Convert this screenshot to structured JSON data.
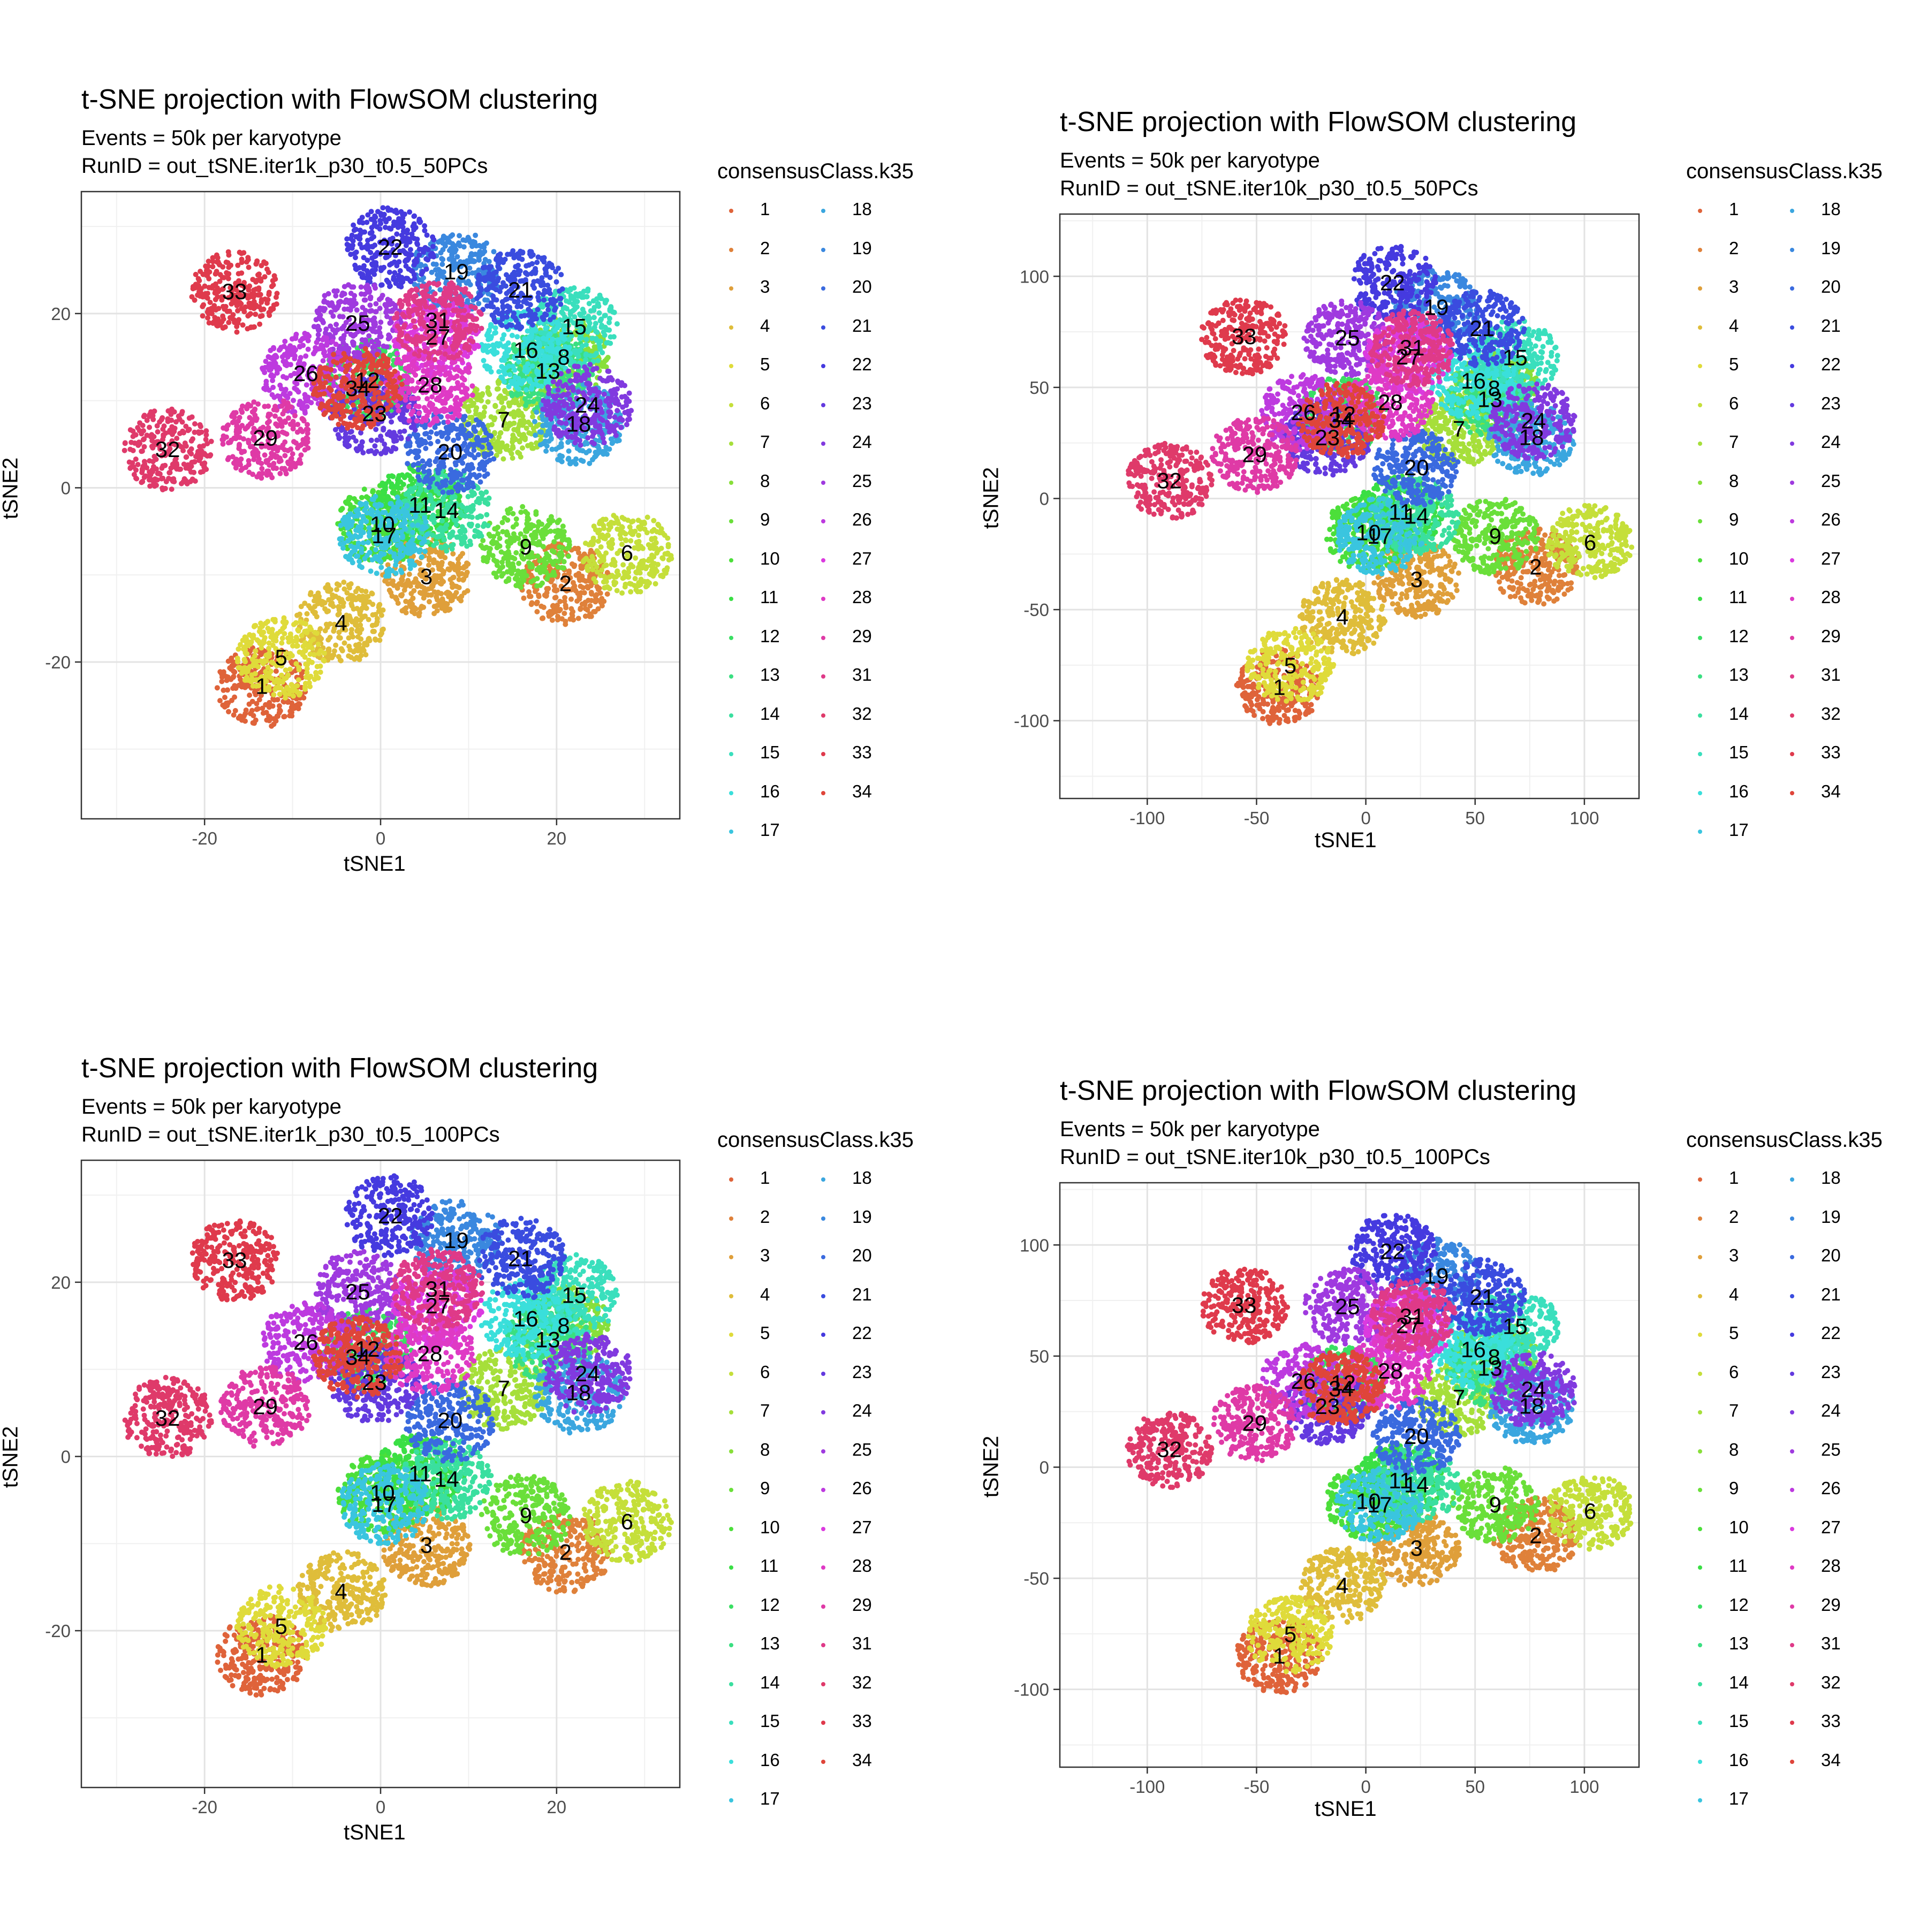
{
  "figure": {
    "panels": [
      {
        "title": "t-SNE projection with FlowSOM clustering",
        "subtitle_lines": [
          "Events = 50k per karyotype",
          "RunID = out_tSNE.iter1k_p30_t0.5_50PCs"
        ],
        "xlabel": "tSNE1",
        "ylabel": "tSNE2",
        "legend_title": "consensusClass.k35"
      },
      {
        "title": "t-SNE projection with FlowSOM clustering",
        "subtitle_lines": [
          "Events = 50k per karyotype",
          "RunID = out_tSNE.iter10k_p30_t0.5_50PCs"
        ],
        "xlabel": "tSNE1",
        "ylabel": "tSNE2",
        "legend_title": "consensusClass.k35"
      },
      {
        "title": "t-SNE projection with FlowSOM clustering",
        "subtitle_lines": [
          "Events = 50k per karyotype",
          "RunID = out_tSNE.iter1k_p30_t0.5_100PCs"
        ],
        "xlabel": "tSNE1",
        "ylabel": "tSNE2",
        "legend_title": "consensusClass.k35"
      },
      {
        "title": "t-SNE projection with FlowSOM clustering",
        "subtitle_lines": [
          "Events = 50k per karyotype",
          "RunID = out_tSNE.iter10k_p30_t0.5_100PCs"
        ],
        "xlabel": "tSNE1",
        "ylabel": "tSNE2",
        "legend_title": "consensusClass.k35"
      }
    ]
  },
  "chart_data": [
    {
      "type": "scatter",
      "title": "t-SNE projection with FlowSOM clustering",
      "subtitle": "Events = 50k per karyotype\nRunID = out_tSNE.iter1k_p30_t0.5_50PCs",
      "xlabel": "tSNE1",
      "ylabel": "tSNE2",
      "xlim": [
        -34,
        34
      ],
      "ylim": [
        -38,
        34
      ],
      "xticks": [
        -20,
        0,
        20
      ],
      "yticks": [
        -20,
        0,
        20
      ],
      "grid": true,
      "legend": {
        "title": "consensusClass.k35",
        "position": "right",
        "entries": [
          "1",
          "2",
          "3",
          "4",
          "5",
          "6",
          "7",
          "8",
          "9",
          "10",
          "11",
          "12",
          "13",
          "14",
          "15",
          "16",
          "17",
          "18",
          "19",
          "20",
          "21",
          "22",
          "23",
          "24",
          "25",
          "26",
          "27",
          "28",
          "29",
          "31",
          "32",
          "33",
          "34"
        ]
      },
      "cluster_labels": [
        {
          "label": "1",
          "x": -13.5,
          "y": -22.8
        },
        {
          "label": "2",
          "x": 21,
          "y": -11
        },
        {
          "label": "3",
          "x": 5.2,
          "y": -10.2
        },
        {
          "label": "4",
          "x": -4.5,
          "y": -15.5
        },
        {
          "label": "5",
          "x": -11.3,
          "y": -19.5
        },
        {
          "label": "6",
          "x": 28,
          "y": -7.5
        },
        {
          "label": "7",
          "x": 14,
          "y": 7.8
        },
        {
          "label": "8",
          "x": 20.8,
          "y": 15
        },
        {
          "label": "9",
          "x": 16.5,
          "y": -6.8
        },
        {
          "label": "10",
          "x": 0.2,
          "y": -4.2
        },
        {
          "label": "11",
          "x": 4.5,
          "y": -2
        },
        {
          "label": "12",
          "x": -1.5,
          "y": 12.3
        },
        {
          "label": "13",
          "x": 19,
          "y": 13.4
        },
        {
          "label": "14",
          "x": 7.5,
          "y": -2.6
        },
        {
          "label": "15",
          "x": 22,
          "y": 18.5
        },
        {
          "label": "16",
          "x": 16.5,
          "y": 15.8
        },
        {
          "label": "17",
          "x": 0.4,
          "y": -5.5
        },
        {
          "label": "18",
          "x": 22.5,
          "y": 7.3
        },
        {
          "label": "19",
          "x": 8.6,
          "y": 24.8
        },
        {
          "label": "20",
          "x": 7.9,
          "y": 4.1
        },
        {
          "label": "21",
          "x": 15.9,
          "y": 22.7
        },
        {
          "label": "22",
          "x": 1.1,
          "y": 27.6
        },
        {
          "label": "23",
          "x": -0.7,
          "y": 8.5
        },
        {
          "label": "24",
          "x": 23.5,
          "y": 9.5
        },
        {
          "label": "25",
          "x": -2.6,
          "y": 18.9
        },
        {
          "label": "26",
          "x": -8.5,
          "y": 13.1
        },
        {
          "label": "27",
          "x": 6.5,
          "y": 17.3
        },
        {
          "label": "28",
          "x": 5.6,
          "y": 11.8
        },
        {
          "label": "29",
          "x": -13.1,
          "y": 5.7
        },
        {
          "label": "31",
          "x": 6.5,
          "y": 19.2
        },
        {
          "label": "32",
          "x": -24.2,
          "y": 4.4
        },
        {
          "label": "33",
          "x": -16.6,
          "y": 22.5
        },
        {
          "label": "34",
          "x": -2.6,
          "y": 11.4
        }
      ]
    },
    {
      "type": "scatter",
      "title": "t-SNE projection with FlowSOM clustering",
      "subtitle": "Events = 50k per karyotype\nRunID = out_tSNE.iter10k_p30_t0.5_50PCs",
      "xlabel": "tSNE1",
      "ylabel": "tSNE2",
      "xlim": [
        -140,
        125
      ],
      "ylim": [
        -135,
        128
      ],
      "xticks": [
        -100,
        -50,
        0,
        50,
        100
      ],
      "yticks": [
        -100,
        -50,
        0,
        50,
        100
      ],
      "grid": true,
      "legend": {
        "title": "consensusClass.k35",
        "position": "right",
        "entries": [
          "1",
          "2",
          "3",
          "4",
          "5",
          "6",
          "7",
          "8",
          "9",
          "10",
          "11",
          "12",
          "13",
          "14",
          "15",
          "16",
          "17",
          "18",
          "19",
          "20",
          "21",
          "22",
          "23",
          "24",
          "25",
          "26",
          "27",
          "28",
          "29",
          "31",
          "32",
          "33",
          "34"
        ]
      },
      "cluster_labels": [
        {
          "label": "1",
          "x": -39.6,
          "y": -85
        },
        {
          "label": "2",
          "x": 77.7,
          "y": -30.8
        },
        {
          "label": "3",
          "x": 23.2,
          "y": -36.5
        },
        {
          "label": "4",
          "x": -10.8,
          "y": -53.3
        },
        {
          "label": "5",
          "x": -34.6,
          "y": -75.3
        },
        {
          "label": "6",
          "x": 102.6,
          "y": -19.9
        },
        {
          "label": "7",
          "x": 42.6,
          "y": 31.3
        },
        {
          "label": "8",
          "x": 58.7,
          "y": 49.5
        },
        {
          "label": "9",
          "x": 59.2,
          "y": -17
        },
        {
          "label": "10",
          "x": 1.2,
          "y": -15.4
        },
        {
          "label": "11",
          "x": 15.8,
          "y": -6.1
        },
        {
          "label": "12",
          "x": -10.3,
          "y": 37.8
        },
        {
          "label": "13",
          "x": 56.8,
          "y": 44.6
        },
        {
          "label": "14",
          "x": 23.2,
          "y": -8
        },
        {
          "label": "15",
          "x": 68.3,
          "y": 63.3
        },
        {
          "label": "16",
          "x": 49.2,
          "y": 52.9
        },
        {
          "label": "17",
          "x": 6.3,
          "y": -17
        },
        {
          "label": "18",
          "x": 75.8,
          "y": 27.4
        },
        {
          "label": "19",
          "x": 32.2,
          "y": 86
        },
        {
          "label": "20",
          "x": 23.2,
          "y": 13.9
        },
        {
          "label": "21",
          "x": 53.2,
          "y": 76.5
        },
        {
          "label": "22",
          "x": 12.2,
          "y": 97.1
        },
        {
          "label": "23",
          "x": -17.6,
          "y": 27.3
        },
        {
          "label": "24",
          "x": 76.7,
          "y": 34.9
        },
        {
          "label": "25",
          "x": -8.4,
          "y": 72.3
        },
        {
          "label": "26",
          "x": -28.6,
          "y": 38.6
        },
        {
          "label": "27",
          "x": 19.5,
          "y": 63.7
        },
        {
          "label": "28",
          "x": 11.2,
          "y": 43.2
        },
        {
          "label": "29",
          "x": -50.9,
          "y": 19.7
        },
        {
          "label": "31",
          "x": 21.2,
          "y": 67.8
        },
        {
          "label": "32",
          "x": -89.9,
          "y": 7.9
        },
        {
          "label": "33",
          "x": -55.7,
          "y": 72.8
        },
        {
          "label": "34",
          "x": -11.3,
          "y": 35.3
        }
      ]
    },
    {
      "type": "scatter",
      "title": "t-SNE projection with FlowSOM clustering",
      "subtitle": "Events = 50k per karyotype\nRunID = out_tSNE.iter1k_p30_t0.5_100PCs",
      "xlabel": "tSNE1",
      "ylabel": "tSNE2",
      "xlim": [
        -34,
        34
      ],
      "ylim": [
        -38,
        34
      ],
      "xticks": [
        -20,
        0,
        20
      ],
      "yticks": [
        -20,
        0,
        20
      ],
      "grid": true,
      "legend": {
        "title": "consensusClass.k35",
        "position": "right",
        "entries": [
          "1",
          "2",
          "3",
          "4",
          "5",
          "6",
          "7",
          "8",
          "9",
          "10",
          "11",
          "12",
          "13",
          "14",
          "15",
          "16",
          "17",
          "18",
          "19",
          "20",
          "21",
          "22",
          "23",
          "24",
          "25",
          "26",
          "27",
          "28",
          "29",
          "31",
          "32",
          "33",
          "34"
        ]
      },
      "cluster_labels": [
        {
          "label": "1",
          "x": -13.5,
          "y": -22.8
        },
        {
          "label": "2",
          "x": 21,
          "y": -11
        },
        {
          "label": "3",
          "x": 5.2,
          "y": -10.2
        },
        {
          "label": "4",
          "x": -4.5,
          "y": -15.5
        },
        {
          "label": "5",
          "x": -11.3,
          "y": -19.5
        },
        {
          "label": "6",
          "x": 28,
          "y": -7.5
        },
        {
          "label": "7",
          "x": 14,
          "y": 7.8
        },
        {
          "label": "8",
          "x": 20.8,
          "y": 15
        },
        {
          "label": "9",
          "x": 16.5,
          "y": -6.8
        },
        {
          "label": "10",
          "x": 0.2,
          "y": -4.2
        },
        {
          "label": "11",
          "x": 4.5,
          "y": -2
        },
        {
          "label": "12",
          "x": -1.5,
          "y": 12.3
        },
        {
          "label": "13",
          "x": 19,
          "y": 13.4
        },
        {
          "label": "14",
          "x": 7.5,
          "y": -2.6
        },
        {
          "label": "15",
          "x": 22,
          "y": 18.5
        },
        {
          "label": "16",
          "x": 16.5,
          "y": 15.8
        },
        {
          "label": "17",
          "x": 0.4,
          "y": -5.5
        },
        {
          "label": "18",
          "x": 22.5,
          "y": 7.3
        },
        {
          "label": "19",
          "x": 8.6,
          "y": 24.8
        },
        {
          "label": "20",
          "x": 7.9,
          "y": 4.1
        },
        {
          "label": "21",
          "x": 15.9,
          "y": 22.7
        },
        {
          "label": "22",
          "x": 1.1,
          "y": 27.6
        },
        {
          "label": "23",
          "x": -0.7,
          "y": 8.5
        },
        {
          "label": "24",
          "x": 23.5,
          "y": 9.5
        },
        {
          "label": "25",
          "x": -2.6,
          "y": 18.9
        },
        {
          "label": "26",
          "x": -8.5,
          "y": 13.1
        },
        {
          "label": "27",
          "x": 6.5,
          "y": 17.3
        },
        {
          "label": "28",
          "x": 5.6,
          "y": 11.8
        },
        {
          "label": "29",
          "x": -13.1,
          "y": 5.7
        },
        {
          "label": "31",
          "x": 6.5,
          "y": 19.2
        },
        {
          "label": "32",
          "x": -24.2,
          "y": 4.4
        },
        {
          "label": "33",
          "x": -16.6,
          "y": 22.5
        },
        {
          "label": "34",
          "x": -2.6,
          "y": 11.4
        }
      ]
    },
    {
      "type": "scatter",
      "title": "t-SNE projection with FlowSOM clustering",
      "subtitle": "Events = 50k per karyotype\nRunID = out_tSNE.iter10k_p30_t0.5_100PCs",
      "xlabel": "tSNE1",
      "ylabel": "tSNE2",
      "xlim": [
        -140,
        125
      ],
      "ylim": [
        -135,
        128
      ],
      "xticks": [
        -100,
        -50,
        0,
        50,
        100
      ],
      "yticks": [
        -100,
        -50,
        0,
        50,
        100
      ],
      "grid": true,
      "legend": {
        "title": "consensusClass.k35",
        "position": "right",
        "entries": [
          "1",
          "2",
          "3",
          "4",
          "5",
          "6",
          "7",
          "8",
          "9",
          "10",
          "11",
          "12",
          "13",
          "14",
          "15",
          "16",
          "17",
          "18",
          "19",
          "20",
          "21",
          "22",
          "23",
          "24",
          "25",
          "26",
          "27",
          "28",
          "29",
          "31",
          "32",
          "33",
          "34"
        ]
      },
      "cluster_labels": [
        {
          "label": "1",
          "x": -39.6,
          "y": -85
        },
        {
          "label": "2",
          "x": 77.7,
          "y": -30.8
        },
        {
          "label": "3",
          "x": 23.2,
          "y": -36.5
        },
        {
          "label": "4",
          "x": -10.8,
          "y": -53.3
        },
        {
          "label": "5",
          "x": -34.6,
          "y": -75.3
        },
        {
          "label": "6",
          "x": 102.6,
          "y": -19.9
        },
        {
          "label": "7",
          "x": 42.6,
          "y": 31.3
        },
        {
          "label": "8",
          "x": 58.7,
          "y": 49.5
        },
        {
          "label": "9",
          "x": 59.2,
          "y": -17
        },
        {
          "label": "10",
          "x": 1.2,
          "y": -15.4
        },
        {
          "label": "11",
          "x": 15.8,
          "y": -6.1
        },
        {
          "label": "12",
          "x": -10.3,
          "y": 37.8
        },
        {
          "label": "13",
          "x": 56.8,
          "y": 44.6
        },
        {
          "label": "14",
          "x": 23.2,
          "y": -8
        },
        {
          "label": "15",
          "x": 68.3,
          "y": 63.3
        },
        {
          "label": "16",
          "x": 49.2,
          "y": 52.9
        },
        {
          "label": "17",
          "x": 6.3,
          "y": -17
        },
        {
          "label": "18",
          "x": 75.8,
          "y": 27.4
        },
        {
          "label": "19",
          "x": 32.2,
          "y": 86
        },
        {
          "label": "20",
          "x": 23.2,
          "y": 13.9
        },
        {
          "label": "21",
          "x": 53.2,
          "y": 76.5
        },
        {
          "label": "22",
          "x": 12.2,
          "y": 97.1
        },
        {
          "label": "23",
          "x": -17.6,
          "y": 27.3
        },
        {
          "label": "24",
          "x": 76.7,
          "y": 34.9
        },
        {
          "label": "25",
          "x": -8.4,
          "y": 72.3
        },
        {
          "label": "26",
          "x": -28.6,
          "y": 38.6
        },
        {
          "label": "27",
          "x": 19.5,
          "y": 63.7
        },
        {
          "label": "28",
          "x": 11.2,
          "y": 43.2
        },
        {
          "label": "29",
          "x": -50.9,
          "y": 19.7
        },
        {
          "label": "31",
          "x": 21.2,
          "y": 67.8
        },
        {
          "label": "32",
          "x": -89.9,
          "y": 7.9
        },
        {
          "label": "33",
          "x": -55.7,
          "y": 72.8
        },
        {
          "label": "34",
          "x": -11.3,
          "y": 35.3
        }
      ]
    }
  ]
}
